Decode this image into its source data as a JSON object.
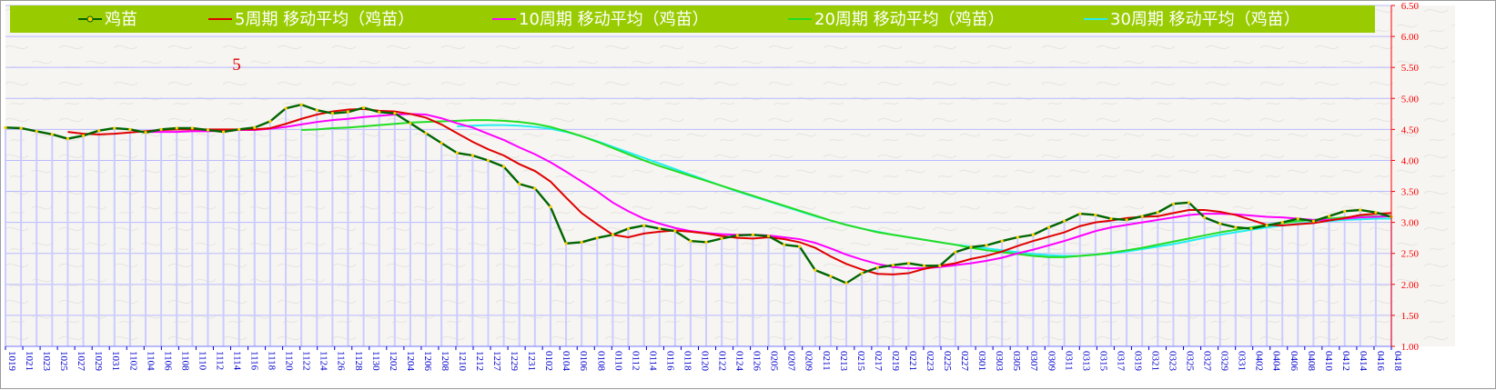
{
  "legend": [
    {
      "label": "鸡苗",
      "color": "#006400",
      "marker": "circle"
    },
    {
      "label": "5周期 移动平均（鸡苗）",
      "color": "#e00000"
    },
    {
      "label": "10周期 移动平均（鸡苗）",
      "color": "#ff00ff"
    },
    {
      "label": "20周期 移动平均（鸡苗）",
      "color": "#22dd22"
    },
    {
      "label": "30周期 移动平均（鸡苗）",
      "color": "#22eeee"
    }
  ],
  "annotation": "5",
  "colors": {
    "legend_bg": "#99cc00",
    "axis_tick_right": "#ff0000",
    "axis_tick_bottom": "#0000cc",
    "bars": "#ccccff",
    "grid": "#b9b9ff",
    "price_dot": "#ffcc00",
    "price_line": "#006400"
  },
  "chart_data": {
    "type": "line",
    "ylim": [
      1.0,
      6.5
    ],
    "y_ticks": [
      "1.00",
      "1.50",
      "2.00",
      "2.50",
      "3.00",
      "3.50",
      "4.00",
      "4.50",
      "5.00",
      "5.50",
      "6.00",
      "6.50"
    ],
    "x_tick_labels": [
      "1019",
      "1021",
      "1023",
      "1025",
      "1027",
      "1029",
      "1031",
      "1102",
      "1104",
      "1106",
      "1108",
      "1110",
      "1112",
      "1114",
      "1116",
      "1118",
      "1120",
      "1122",
      "1124",
      "1126",
      "1128",
      "1130",
      "1202",
      "1204",
      "1206",
      "1208",
      "1210",
      "1212",
      "1227",
      "1229",
      "1231",
      "0102",
      "0104",
      "0106",
      "0108",
      "0110",
      "0112",
      "0114",
      "0116",
      "0118",
      "0120",
      "0122",
      "0124",
      "0126",
      "0205",
      "0207",
      "0209",
      "0211",
      "0213",
      "0215",
      "0217",
      "0219",
      "0221",
      "0223",
      "0225",
      "0227",
      "0301",
      "0303",
      "0305",
      "0307",
      "0309",
      "0311",
      "0313",
      "0315",
      "0317",
      "0319",
      "0321",
      "0323",
      "0325",
      "0327",
      "0329",
      "0331",
      "0402",
      "0404",
      "0406",
      "0408",
      "0410",
      "0412",
      "0414",
      "0416",
      "0418"
    ],
    "grid": true,
    "legend_position": "top",
    "series": [
      {
        "name": "鸡苗",
        "values": [
          4.53,
          4.52,
          4.47,
          4.42,
          4.35,
          4.4,
          4.48,
          4.52,
          4.5,
          4.45,
          4.5,
          4.52,
          4.52,
          4.49,
          4.46,
          4.5,
          4.53,
          4.63,
          4.84,
          4.9,
          4.81,
          4.76,
          4.78,
          4.85,
          4.78,
          4.76,
          4.6,
          4.44,
          4.28,
          4.12,
          4.08,
          4.0,
          3.9,
          3.62,
          3.55,
          3.25,
          2.66,
          2.68,
          2.75,
          2.8,
          2.9,
          2.95,
          2.9,
          2.86,
          2.7,
          2.68,
          2.74,
          2.79,
          2.8,
          2.78,
          2.64,
          2.61,
          2.23,
          2.13,
          2.02,
          2.18,
          2.27,
          2.31,
          2.34,
          2.3,
          2.3,
          2.52,
          2.6,
          2.63,
          2.7,
          2.76,
          2.8,
          2.92,
          3.02,
          3.14,
          3.12,
          3.06,
          3.04,
          3.1,
          3.16,
          3.3,
          3.32,
          3.08,
          2.98,
          2.92,
          2.9,
          2.95,
          3.0,
          3.06,
          3.02,
          3.1,
          3.18,
          3.2,
          3.16,
          3.09
        ]
      },
      {
        "name": "5周期 移动平均（鸡苗）",
        "values": [
          null,
          null,
          null,
          null,
          4.46,
          4.43,
          4.42,
          4.43,
          4.45,
          4.47,
          4.49,
          4.5,
          4.5,
          4.5,
          4.5,
          4.5,
          4.5,
          4.52,
          4.59,
          4.67,
          4.74,
          4.79,
          4.82,
          4.83,
          4.8,
          4.79,
          4.75,
          4.69,
          4.58,
          4.44,
          4.3,
          4.18,
          4.08,
          3.94,
          3.83,
          3.66,
          3.4,
          3.15,
          2.97,
          2.8,
          2.76,
          2.82,
          2.85,
          2.87,
          2.85,
          2.82,
          2.78,
          2.75,
          2.74,
          2.76,
          2.73,
          2.68,
          2.59,
          2.45,
          2.33,
          2.24,
          2.17,
          2.16,
          2.18,
          2.25,
          2.3,
          2.34,
          2.41,
          2.46,
          2.53,
          2.62,
          2.7,
          2.77,
          2.84,
          2.94,
          3.0,
          3.03,
          3.07,
          3.09,
          3.1,
          3.15,
          3.2,
          3.2,
          3.17,
          3.12,
          3.04,
          2.96,
          2.95,
          2.97,
          2.99,
          3.03,
          3.07,
          3.12,
          3.14,
          3.15
        ]
      },
      {
        "name": "10周期 移动平均（鸡苗）",
        "values": [
          null,
          null,
          null,
          null,
          null,
          null,
          null,
          null,
          null,
          4.46,
          4.46,
          4.46,
          4.47,
          4.47,
          4.48,
          4.49,
          4.49,
          4.51,
          4.54,
          4.58,
          4.62,
          4.65,
          4.67,
          4.7,
          4.72,
          4.74,
          4.75,
          4.74,
          4.68,
          4.6,
          4.53,
          4.43,
          4.33,
          4.21,
          4.1,
          3.97,
          3.82,
          3.66,
          3.5,
          3.32,
          3.18,
          3.06,
          2.98,
          2.91,
          2.86,
          2.83,
          2.81,
          2.8,
          2.8,
          2.79,
          2.76,
          2.73,
          2.67,
          2.58,
          2.48,
          2.4,
          2.33,
          2.28,
          2.26,
          2.26,
          2.28,
          2.31,
          2.34,
          2.38,
          2.43,
          2.5,
          2.56,
          2.63,
          2.7,
          2.78,
          2.86,
          2.92,
          2.96,
          3.0,
          3.04,
          3.08,
          3.12,
          3.14,
          3.14,
          3.13,
          3.11,
          3.09,
          3.08,
          3.06,
          3.04,
          3.04,
          3.06,
          3.08,
          3.09,
          3.1
        ]
      },
      {
        "name": "20周期 移动平均（鸡苗）",
        "values": [
          null,
          null,
          null,
          null,
          null,
          null,
          null,
          null,
          null,
          null,
          null,
          null,
          null,
          null,
          null,
          null,
          null,
          null,
          null,
          4.49,
          4.5,
          4.52,
          4.53,
          4.55,
          4.57,
          4.59,
          4.61,
          4.62,
          4.63,
          4.64,
          4.65,
          4.65,
          4.64,
          4.62,
          4.59,
          4.54,
          4.47,
          4.39,
          4.3,
          4.2,
          4.1,
          4.0,
          3.91,
          3.83,
          3.75,
          3.67,
          3.59,
          3.51,
          3.43,
          3.35,
          3.27,
          3.19,
          3.11,
          3.03,
          2.96,
          2.9,
          2.84,
          2.8,
          2.76,
          2.72,
          2.68,
          2.64,
          2.59,
          2.55,
          2.52,
          2.49,
          2.46,
          2.44,
          2.44,
          2.46,
          2.48,
          2.51,
          2.55,
          2.59,
          2.64,
          2.69,
          2.74,
          2.79,
          2.84,
          2.88,
          2.92,
          2.96,
          2.99,
          3.02,
          3.04,
          3.06,
          3.08,
          3.09,
          3.1,
          3.1
        ]
      },
      {
        "name": "30周期 移动平均（鸡苗）",
        "values": [
          null,
          null,
          null,
          null,
          null,
          null,
          null,
          null,
          null,
          null,
          null,
          null,
          null,
          null,
          null,
          null,
          null,
          null,
          null,
          null,
          null,
          null,
          null,
          null,
          null,
          null,
          null,
          null,
          null,
          4.55,
          4.56,
          4.57,
          4.57,
          4.56,
          4.54,
          4.51,
          4.46,
          4.39,
          4.31,
          4.22,
          4.13,
          4.04,
          3.95,
          3.86,
          3.77,
          3.68,
          3.59,
          3.5,
          3.42,
          3.34,
          3.26,
          3.18,
          3.1,
          3.03,
          2.96,
          2.9,
          2.85,
          2.8,
          2.76,
          2.72,
          2.68,
          2.64,
          2.61,
          2.58,
          2.55,
          2.52,
          2.49,
          2.47,
          2.46,
          2.46,
          2.48,
          2.5,
          2.53,
          2.57,
          2.61,
          2.65,
          2.7,
          2.75,
          2.8,
          2.84,
          2.88,
          2.92,
          2.95,
          2.98,
          3.0,
          3.02,
          3.04,
          3.05,
          3.06,
          3.06
        ]
      }
    ]
  }
}
